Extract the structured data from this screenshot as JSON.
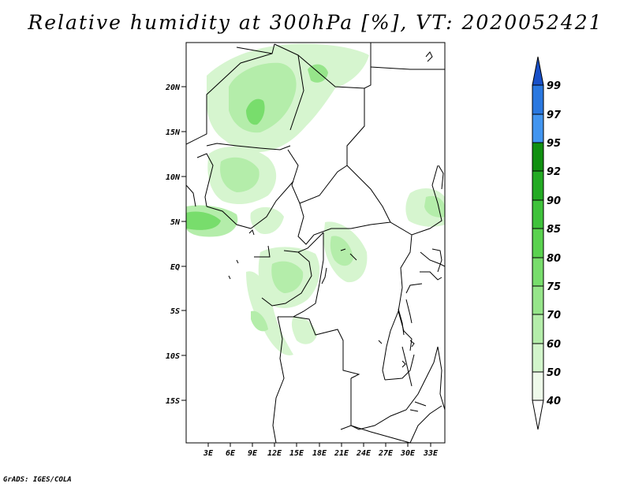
{
  "title": "Relative humidity at 300hPa [%], VT: 2020052421",
  "credit": "GrADS: IGES/COLA",
  "map": {
    "lat_labels": [
      "20N",
      "15N",
      "10N",
      "5N",
      "EQ",
      "5S",
      "10S",
      "15S"
    ],
    "lon_labels": [
      "3E",
      "6E",
      "9E",
      "12E",
      "15E",
      "18E",
      "21E",
      "24E",
      "27E",
      "30E",
      "33E"
    ],
    "lon_range": [
      0,
      35
    ],
    "lat_range": [
      -20,
      25
    ]
  },
  "colorbar": {
    "labels": [
      "40",
      "50",
      "60",
      "70",
      "75",
      "80",
      "85",
      "90",
      "92",
      "95",
      "97",
      "99"
    ],
    "colors": [
      "#eefaea",
      "#d2f5cb",
      "#b4edaa",
      "#96e58a",
      "#78dd6c",
      "#5ad24f",
      "#3fc23b",
      "#23aa23",
      "#109010",
      "#4295f0",
      "#2a78e0",
      "#1850c8"
    ]
  }
}
